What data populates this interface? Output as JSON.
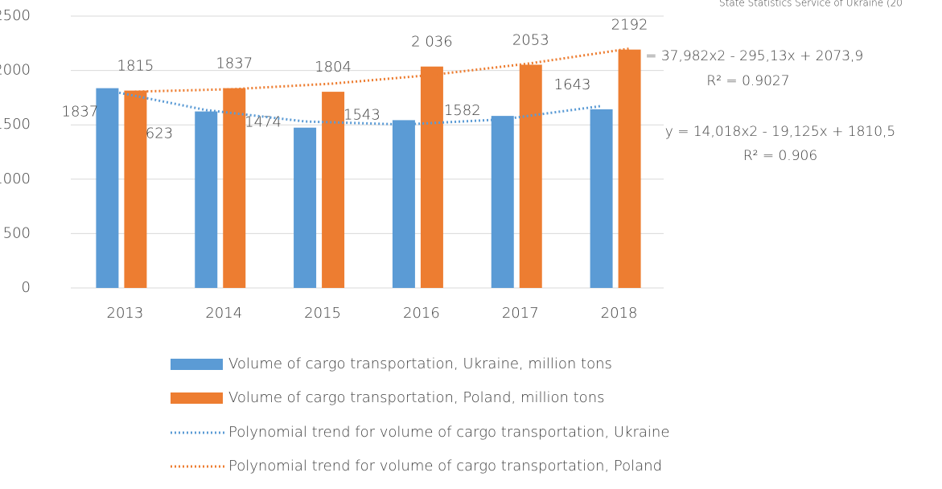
{
  "chart_data": {
    "type": "bar",
    "source_note": "State Statistics Service of Ukraine (20",
    "categories": [
      "2013",
      "2014",
      "2015",
      "2016",
      "2017",
      "2018"
    ],
    "series": [
      {
        "name": "Volume of cargo transportation, Ukraine, million tons",
        "color": "#5b9bd5",
        "values": [
          1837,
          1623,
          1474,
          1543,
          1582,
          1643
        ]
      },
      {
        "name": "Volume of cargo transportation, Poland, million tons",
        "color": "#ed7d31",
        "values": [
          1815,
          1837,
          1804,
          2036,
          2053,
          2192
        ],
        "value_labels": [
          "1815",
          "1837",
          "1804",
          "2 036",
          "2053",
          "2192"
        ]
      }
    ],
    "trends": [
      {
        "name": "Polynomial trend for volume of cargo transportation, Ukraine",
        "color": "#5b9bd5",
        "values": [
          1817,
          1636,
          1531,
          1503,
          1550,
          1673
        ]
      },
      {
        "name": "Polynomial trend for volume of cargo transportation, Poland",
        "color": "#ed7d31",
        "values": [
          1805,
          1828,
          1879,
          1958,
          2065,
          2200
        ]
      }
    ],
    "annotations": [
      "y = 37,982x2 - 295,13x + 2073,9",
      "R² = 0.9027",
      "y = 14,018x2 - 19,125x + 1810,5",
      "R² = 0.906"
    ],
    "ylim": [
      0,
      2500
    ],
    "yticks": [
      0,
      500,
      1000,
      1500,
      2000,
      2500
    ],
    "grid": true
  }
}
